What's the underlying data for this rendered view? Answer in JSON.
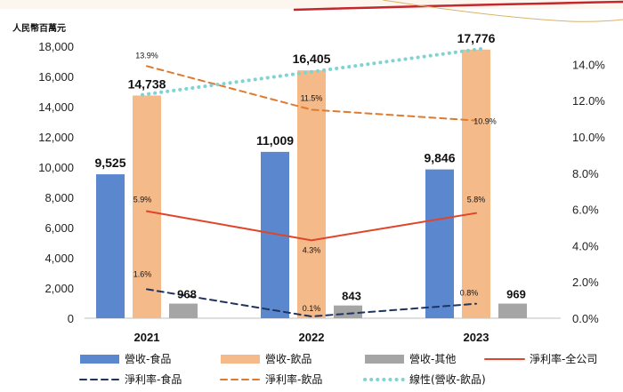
{
  "chart_data": {
    "type": "bar",
    "unit_label": "人民幣百萬元",
    "categories": [
      "2021",
      "2022",
      "2023"
    ],
    "ylim": [
      0,
      18000
    ],
    "y2lim": [
      0,
      15
    ],
    "y_ticks": [
      "0",
      "2,000",
      "4,000",
      "6,000",
      "8,000",
      "10,000",
      "12,000",
      "14,000",
      "16,000",
      "18,000"
    ],
    "y2_ticks": [
      "0.0%",
      "2.0%",
      "4.0%",
      "6.0%",
      "8.0%",
      "10.0%",
      "12.0%",
      "14.0%"
    ],
    "bar_series": [
      {
        "name": "營收-食品",
        "color": "#5b87cf",
        "values": [
          9525,
          11009,
          9846
        ],
        "labels": [
          "9,525",
          "11,009",
          "9,846"
        ]
      },
      {
        "name": "營收-飲品",
        "color": "#f5ba8a",
        "values": [
          14738,
          16405,
          17776
        ],
        "labels": [
          "14,738",
          "16,405",
          "17,776"
        ]
      },
      {
        "name": "營收-其他",
        "color": "#a5a5a5",
        "values": [
          968,
          843,
          969
        ],
        "labels": [
          "968",
          "843",
          "969"
        ]
      }
    ],
    "line_series": [
      {
        "name": "淨利率-全公司",
        "color": "#e0452a",
        "style": "solid",
        "values": [
          5.9,
          4.3,
          5.8
        ],
        "labels": [
          "5.9%",
          "4.3%",
          "5.8%"
        ]
      },
      {
        "name": "淨利率-食品",
        "color": "#1f3460",
        "style": "dashed",
        "values": [
          1.6,
          0.1,
          0.8
        ],
        "labels": [
          "1.6%",
          "0.1%",
          "0.8%"
        ]
      },
      {
        "name": "淨利率-飲品",
        "color": "#e07a2e",
        "style": "dashed",
        "values": [
          13.9,
          11.5,
          10.9
        ],
        "labels": [
          "13.9%",
          "11.5%",
          "10.9%"
        ]
      },
      {
        "name": "線性(營收-飲品)",
        "color": "#7fd3d3",
        "style": "dotted",
        "trend_of": "營收-飲品"
      }
    ],
    "legend": [
      "營收-食品",
      "營收-飲品",
      "營收-其他",
      "淨利率-全公司",
      "淨利率-食品",
      "淨利率-飲品",
      "線性(營收-飲品)"
    ]
  }
}
